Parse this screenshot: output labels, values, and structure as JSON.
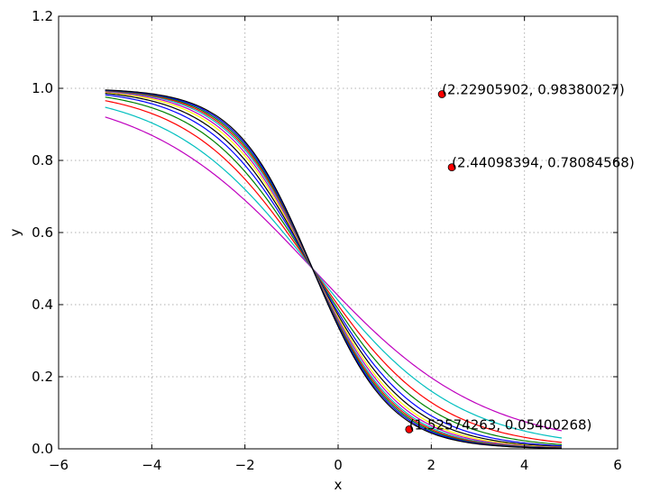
{
  "chart_data": {
    "type": "line",
    "title": "",
    "xlabel": "x",
    "ylabel": "y",
    "xlim": [
      -6,
      6
    ],
    "ylim": [
      0,
      1.2
    ],
    "xticks": [
      -6,
      -4,
      -2,
      0,
      2,
      4,
      6
    ],
    "yticks": [
      0.0,
      0.2,
      0.4,
      0.6,
      0.8,
      1.0,
      1.2
    ],
    "xtick_labels": [
      "−6",
      "−4",
      "−2",
      "0",
      "2",
      "4",
      "6"
    ],
    "ytick_labels": [
      "0.0",
      "0.2",
      "0.4",
      "0.6",
      "0.8",
      "1.0",
      "1.2"
    ],
    "grid": true,
    "x_range": [
      -5,
      4.8
    ],
    "series": [
      {
        "center": -0.55,
        "steepness": 0.55,
        "color": "#bf00bf"
      },
      {
        "center": -0.55,
        "steepness": 0.65,
        "color": "#00bfbf"
      },
      {
        "center": -0.55,
        "steepness": 0.75,
        "color": "#ff0000"
      },
      {
        "center": -0.55,
        "steepness": 0.83,
        "color": "#008000"
      },
      {
        "center": -0.55,
        "steepness": 0.9,
        "color": "#0000ff"
      },
      {
        "center": -0.55,
        "steepness": 0.96,
        "color": "#000000"
      },
      {
        "center": -0.55,
        "steepness": 1.01,
        "color": "#ffff00"
      },
      {
        "center": -0.55,
        "steepness": 1.05,
        "color": "#bf00bf"
      },
      {
        "center": -0.55,
        "steepness": 1.09,
        "color": "#00bfbf"
      },
      {
        "center": -0.55,
        "steepness": 1.12,
        "color": "#ff0000"
      },
      {
        "center": -0.55,
        "steepness": 1.15,
        "color": "#008000"
      },
      {
        "center": -0.55,
        "steepness": 1.18,
        "color": "#0000ff"
      },
      {
        "center": -0.55,
        "steepness": 1.21,
        "color": "#000000"
      }
    ],
    "annotated_points": [
      {
        "x": 2.22905902,
        "y": 0.98380027,
        "label": "(2.22905902, 0.98380027)"
      },
      {
        "x": 2.44098394,
        "y": 0.78084568,
        "label": "(2.44098394, 0.78084568)"
      },
      {
        "x": 1.52574263,
        "y": 0.05400268,
        "label": "(1.52574263, 0.05400268)"
      }
    ],
    "point_color": "#ff0000"
  }
}
